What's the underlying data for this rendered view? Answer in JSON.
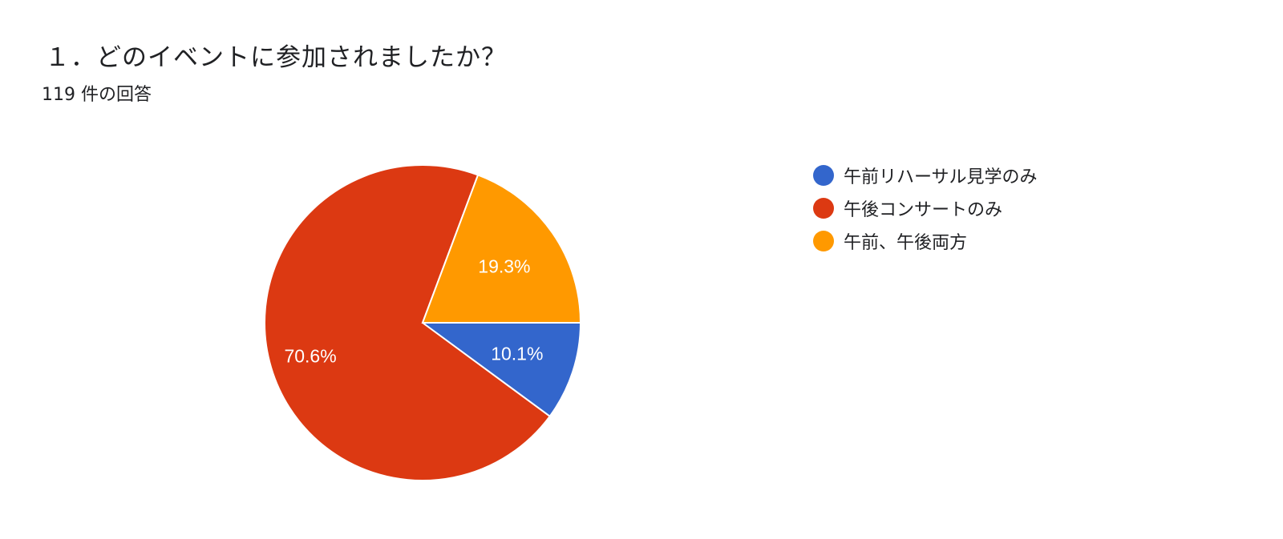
{
  "question": {
    "title": "１．どのイベントに参加されましたか？",
    "response_count": "119 件の回答"
  },
  "chart_data": {
    "type": "pie",
    "title": "１．どのイベントに参加されましたか？",
    "subtitle": "119 件の回答",
    "legend_position": "right",
    "slices": [
      {
        "label": "午前リハーサル見学のみ",
        "value": 10.1,
        "display": "10.1%",
        "color": "#3366cc"
      },
      {
        "label": "午後コンサートのみ",
        "value": 70.6,
        "display": "70.6%",
        "color": "#dc3912"
      },
      {
        "label": "午前、午後両方",
        "value": 19.3,
        "display": "19.3%",
        "color": "#ff9900"
      }
    ]
  }
}
